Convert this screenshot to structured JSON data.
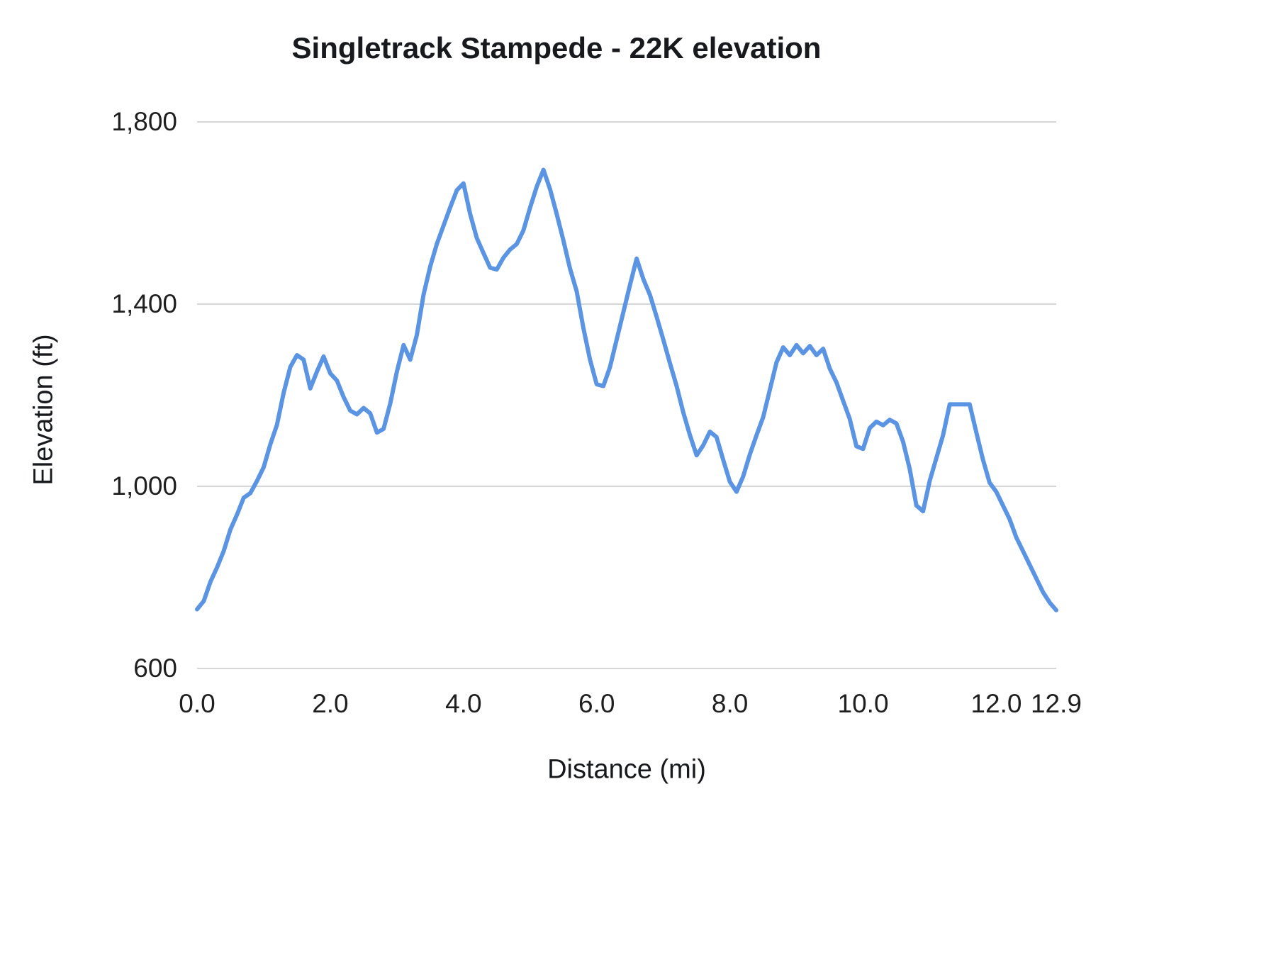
{
  "title": "Singletrack Stampede - 22K elevation",
  "chart_data": {
    "type": "line",
    "title": "Singletrack Stampede - 22K elevation",
    "xlabel": "Distance (mi)",
    "ylabel": "Elevation (ft)",
    "xlim": [
      0,
      12.9
    ],
    "ylim": [
      600,
      1800
    ],
    "grid": true,
    "legend": "none",
    "line_color": "#5b94e3",
    "grid_color": "#d6d6d6",
    "line_width": 6,
    "x_ticks": [
      {
        "value": 0.0,
        "label": "0.0"
      },
      {
        "value": 2.0,
        "label": "2.0"
      },
      {
        "value": 4.0,
        "label": "4.0"
      },
      {
        "value": 6.0,
        "label": "6.0"
      },
      {
        "value": 8.0,
        "label": "8.0"
      },
      {
        "value": 10.0,
        "label": "10.0"
      },
      {
        "value": 12.0,
        "label": "12.0"
      },
      {
        "value": 12.9,
        "label": "12.9"
      }
    ],
    "y_ticks": [
      {
        "value": 600,
        "label": "600"
      },
      {
        "value": 1000,
        "label": "1,000"
      },
      {
        "value": 1400,
        "label": "1,400"
      },
      {
        "value": 1800,
        "label": "1,800"
      }
    ],
    "series": [
      {
        "name": "Elevation",
        "x": [
          0.0,
          0.1,
          0.2,
          0.3,
          0.4,
          0.5,
          0.6,
          0.7,
          0.8,
          0.9,
          1.0,
          1.1,
          1.2,
          1.3,
          1.4,
          1.5,
          1.6,
          1.7,
          1.8,
          1.9,
          2.0,
          2.1,
          2.2,
          2.3,
          2.4,
          2.5,
          2.6,
          2.7,
          2.8,
          2.9,
          3.0,
          3.1,
          3.2,
          3.3,
          3.4,
          3.5,
          3.6,
          3.7,
          3.8,
          3.9,
          4.0,
          4.1,
          4.2,
          4.3,
          4.4,
          4.5,
          4.6,
          4.7,
          4.8,
          4.9,
          5.0,
          5.1,
          5.2,
          5.3,
          5.4,
          5.5,
          5.6,
          5.7,
          5.8,
          5.9,
          6.0,
          6.1,
          6.2,
          6.3,
          6.4,
          6.5,
          6.6,
          6.7,
          6.8,
          6.9,
          7.0,
          7.1,
          7.2,
          7.3,
          7.4,
          7.5,
          7.6,
          7.7,
          7.8,
          7.9,
          8.0,
          8.1,
          8.2,
          8.3,
          8.4,
          8.5,
          8.6,
          8.7,
          8.8,
          8.9,
          9.0,
          9.1,
          9.2,
          9.3,
          9.4,
          9.5,
          9.6,
          9.7,
          9.8,
          9.9,
          10.0,
          10.1,
          10.2,
          10.3,
          10.4,
          10.5,
          10.6,
          10.7,
          10.8,
          10.9,
          11.0,
          11.1,
          11.2,
          11.3,
          11.4,
          11.5,
          11.6,
          11.7,
          11.8,
          11.9,
          12.0,
          12.1,
          12.2,
          12.3,
          12.4,
          12.5,
          12.6,
          12.7,
          12.8,
          12.9
        ],
        "y": [
          730,
          748,
          790,
          822,
          858,
          905,
          938,
          975,
          985,
          1012,
          1042,
          1092,
          1135,
          1205,
          1262,
          1288,
          1278,
          1215,
          1252,
          1285,
          1248,
          1232,
          1196,
          1166,
          1158,
          1172,
          1160,
          1118,
          1126,
          1182,
          1252,
          1310,
          1278,
          1332,
          1420,
          1482,
          1532,
          1572,
          1612,
          1650,
          1665,
          1598,
          1545,
          1512,
          1480,
          1476,
          1502,
          1520,
          1532,
          1562,
          1612,
          1658,
          1695,
          1652,
          1598,
          1540,
          1478,
          1428,
          1348,
          1278,
          1224,
          1220,
          1262,
          1322,
          1382,
          1442,
          1500,
          1455,
          1420,
          1372,
          1322,
          1270,
          1220,
          1162,
          1112,
          1068,
          1090,
          1120,
          1108,
          1058,
          1010,
          988,
          1022,
          1070,
          1112,
          1152,
          1212,
          1272,
          1305,
          1288,
          1310,
          1292,
          1308,
          1288,
          1302,
          1258,
          1228,
          1188,
          1148,
          1088,
          1082,
          1128,
          1142,
          1134,
          1146,
          1138,
          1098,
          1038,
          958,
          945,
          1012,
          1062,
          1112,
          1180,
          1180,
          1180,
          1180,
          1118,
          1058,
          1008,
          988,
          958,
          928,
          888,
          858,
          828,
          798,
          768,
          745,
          728
        ]
      }
    ]
  }
}
